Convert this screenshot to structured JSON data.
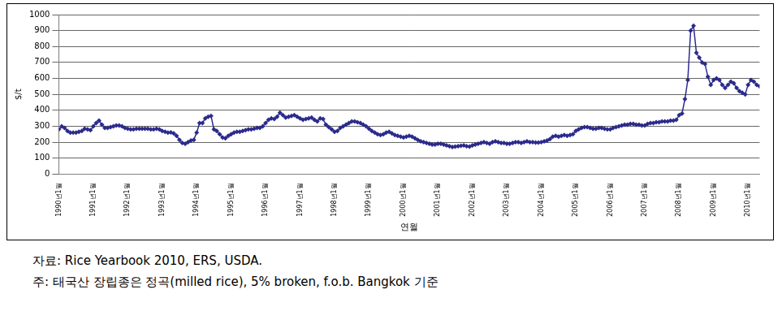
{
  "chart_data": {
    "type": "line",
    "x_label": "연월",
    "y_label": "$/t",
    "notes": [
      "자료: Rice Yearbook 2010, ERS, USDA.",
      "주: 태국산 장립종은 정곡(milled rice), 5% broken, f.o.b. Bangkok 기준"
    ],
    "categories": [
      "1990년1월",
      null,
      null,
      null,
      null,
      null,
      null,
      null,
      null,
      null,
      null,
      null,
      "1991년1월",
      null,
      null,
      null,
      null,
      null,
      null,
      null,
      null,
      null,
      null,
      null,
      "1992년1월",
      null,
      null,
      null,
      null,
      null,
      null,
      null,
      null,
      null,
      null,
      null,
      "1993년1월",
      null,
      null,
      null,
      null,
      null,
      null,
      null,
      null,
      null,
      null,
      null,
      "1994년1월",
      null,
      null,
      null,
      null,
      null,
      null,
      null,
      null,
      null,
      null,
      null,
      "1995년1월",
      null,
      null,
      null,
      null,
      null,
      null,
      null,
      null,
      null,
      null,
      null,
      "1996년1월",
      null,
      null,
      null,
      null,
      null,
      null,
      null,
      null,
      null,
      null,
      null,
      "1997년1월",
      null,
      null,
      null,
      null,
      null,
      null,
      null,
      null,
      null,
      null,
      null,
      "1998년1월",
      null,
      null,
      null,
      null,
      null,
      null,
      null,
      null,
      null,
      null,
      null,
      "1999년1월",
      null,
      null,
      null,
      null,
      null,
      null,
      null,
      null,
      null,
      null,
      null,
      "2000년1월",
      null,
      null,
      null,
      null,
      null,
      null,
      null,
      null,
      null,
      null,
      null,
      "2001년1월",
      null,
      null,
      null,
      null,
      null,
      null,
      null,
      null,
      null,
      null,
      null,
      "2002년1월",
      null,
      null,
      null,
      null,
      null,
      null,
      null,
      null,
      null,
      null,
      null,
      "2003년1월",
      null,
      null,
      null,
      null,
      null,
      null,
      null,
      null,
      null,
      null,
      null,
      "2004년1월",
      null,
      null,
      null,
      null,
      null,
      null,
      null,
      null,
      null,
      null,
      null,
      "2005년1월",
      null,
      null,
      null,
      null,
      null,
      null,
      null,
      null,
      null,
      null,
      null,
      "2006년1월",
      null,
      null,
      null,
      null,
      null,
      null,
      null,
      null,
      null,
      null,
      null,
      "2007년1월",
      null,
      null,
      null,
      null,
      null,
      null,
      null,
      null,
      null,
      null,
      null,
      "2008년1월",
      null,
      null,
      null,
      null,
      null,
      null,
      null,
      null,
      null,
      null,
      null,
      "2009년1월",
      null,
      null,
      null,
      null,
      null,
      null,
      null,
      null,
      null,
      null,
      null,
      "2010년1월",
      null,
      null,
      null,
      null
    ],
    "values": [
      280,
      300,
      290,
      270,
      260,
      260,
      260,
      265,
      270,
      285,
      280,
      275,
      300,
      320,
      335,
      310,
      290,
      290,
      295,
      300,
      305,
      305,
      300,
      290,
      285,
      280,
      280,
      285,
      285,
      285,
      285,
      285,
      280,
      280,
      285,
      280,
      270,
      265,
      260,
      262,
      255,
      240,
      215,
      195,
      190,
      200,
      210,
      215,
      260,
      320,
      320,
      350,
      360,
      365,
      280,
      270,
      250,
      230,
      225,
      240,
      250,
      260,
      265,
      265,
      270,
      275,
      280,
      280,
      285,
      290,
      290,
      300,
      320,
      340,
      350,
      345,
      360,
      385,
      370,
      355,
      360,
      365,
      370,
      360,
      350,
      340,
      345,
      350,
      355,
      340,
      330,
      350,
      345,
      310,
      295,
      280,
      265,
      270,
      290,
      300,
      310,
      320,
      330,
      330,
      325,
      320,
      310,
      300,
      285,
      270,
      260,
      250,
      245,
      250,
      260,
      265,
      255,
      245,
      240,
      235,
      230,
      235,
      240,
      235,
      225,
      215,
      205,
      200,
      195,
      190,
      185,
      185,
      190,
      190,
      185,
      180,
      175,
      170,
      172,
      175,
      178,
      180,
      175,
      172,
      180,
      185,
      190,
      195,
      200,
      195,
      190,
      200,
      205,
      200,
      195,
      195,
      190,
      190,
      195,
      200,
      200,
      195,
      200,
      205,
      200,
      200,
      198,
      198,
      200,
      205,
      210,
      220,
      235,
      240,
      235,
      240,
      245,
      240,
      245,
      250,
      270,
      280,
      290,
      295,
      295,
      290,
      285,
      285,
      290,
      290,
      285,
      280,
      280,
      290,
      295,
      300,
      305,
      310,
      310,
      315,
      315,
      310,
      310,
      305,
      305,
      315,
      320,
      320,
      325,
      325,
      330,
      330,
      330,
      335,
      335,
      340,
      370,
      380,
      470,
      590,
      900,
      930,
      760,
      730,
      700,
      690,
      610,
      560,
      590,
      600,
      590,
      560,
      540,
      560,
      580,
      570,
      540,
      520,
      510,
      500,
      560,
      590,
      580,
      560,
      550
    ],
    "color": "#2b2b8c",
    "marker": "diamond",
    "line_style": "solid",
    "ylim": [
      0,
      1000
    ],
    "yticks": [
      0,
      100,
      200,
      300,
      400,
      500,
      600,
      700,
      800,
      900,
      1000
    ],
    "grid": true
  }
}
